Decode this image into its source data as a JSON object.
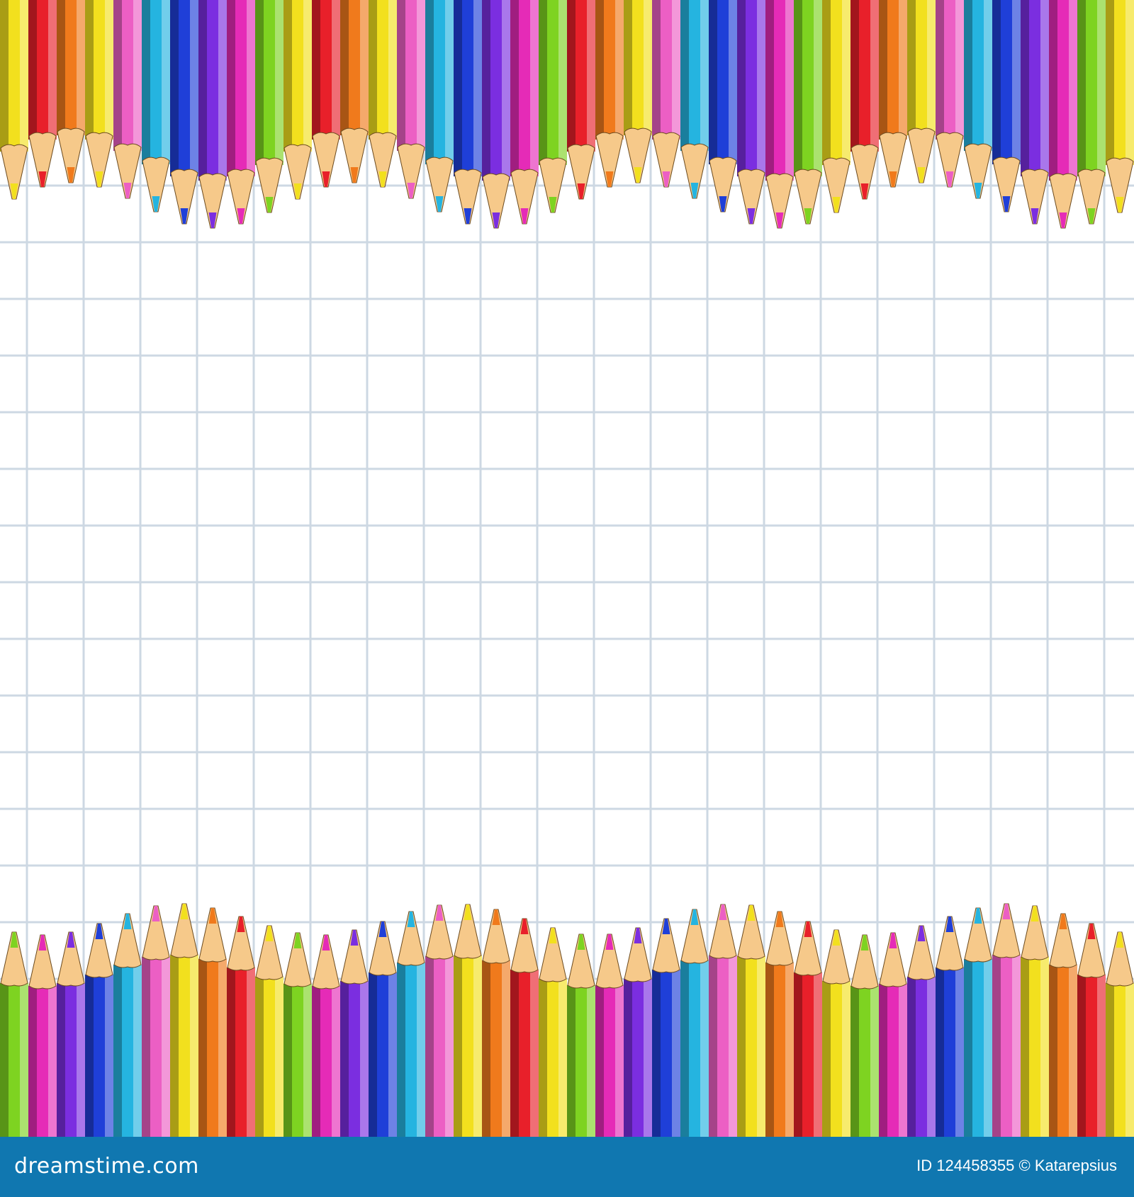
{
  "image": {
    "subject": "colored-pencils-on-grid-paper",
    "paper_color": "#ffffff",
    "grid_color": "#cdd8e3",
    "wood_color": "#f6c98a",
    "top_row_colors": [
      "#f2e01e",
      "#e8202a",
      "#f07a1c",
      "#f2e01e",
      "#ec5fc4",
      "#25b4e0",
      "#1f3fd8",
      "#7b2ee0",
      "#e52bb7",
      "#7ed321",
      "#f2e01e",
      "#e8202a",
      "#f07a1c",
      "#f2e01e",
      "#ec5fc4",
      "#25b4e0",
      "#1f3fd8",
      "#7b2ee0",
      "#e52bb7",
      "#7ed321",
      "#e8202a",
      "#f07a1c",
      "#f2e01e",
      "#ec5fc4",
      "#25b4e0",
      "#1f3fd8",
      "#7b2ee0",
      "#e52bb7",
      "#7ed321",
      "#f2e01e",
      "#e8202a",
      "#f07a1c",
      "#f2e01e",
      "#ec5fc4",
      "#25b4e0",
      "#1f3fd8",
      "#7b2ee0",
      "#e52bb7",
      "#7ed321",
      "#f2e01e"
    ],
    "bottom_row_colors": [
      "#7ed321",
      "#e52bb7",
      "#7b2ee0",
      "#1f3fd8",
      "#25b4e0",
      "#ec5fc4",
      "#f2e01e",
      "#f07a1c",
      "#e8202a",
      "#f2e01e",
      "#7ed321",
      "#e52bb7",
      "#7b2ee0",
      "#1f3fd8",
      "#25b4e0",
      "#ec5fc4",
      "#f2e01e",
      "#f07a1c",
      "#e8202a",
      "#f2e01e",
      "#7ed321",
      "#e52bb7",
      "#7b2ee0",
      "#1f3fd8",
      "#25b4e0",
      "#ec5fc4",
      "#f2e01e",
      "#f07a1c",
      "#e8202a",
      "#f2e01e",
      "#7ed321",
      "#e52bb7",
      "#7b2ee0",
      "#1f3fd8",
      "#25b4e0",
      "#ec5fc4",
      "#f2e01e",
      "#f07a1c",
      "#e8202a",
      "#f2e01e"
    ]
  },
  "footer": {
    "logo": "dreamstime.com",
    "credit": "ID 124458355 © Katarepsius",
    "background": "#1077b0"
  }
}
